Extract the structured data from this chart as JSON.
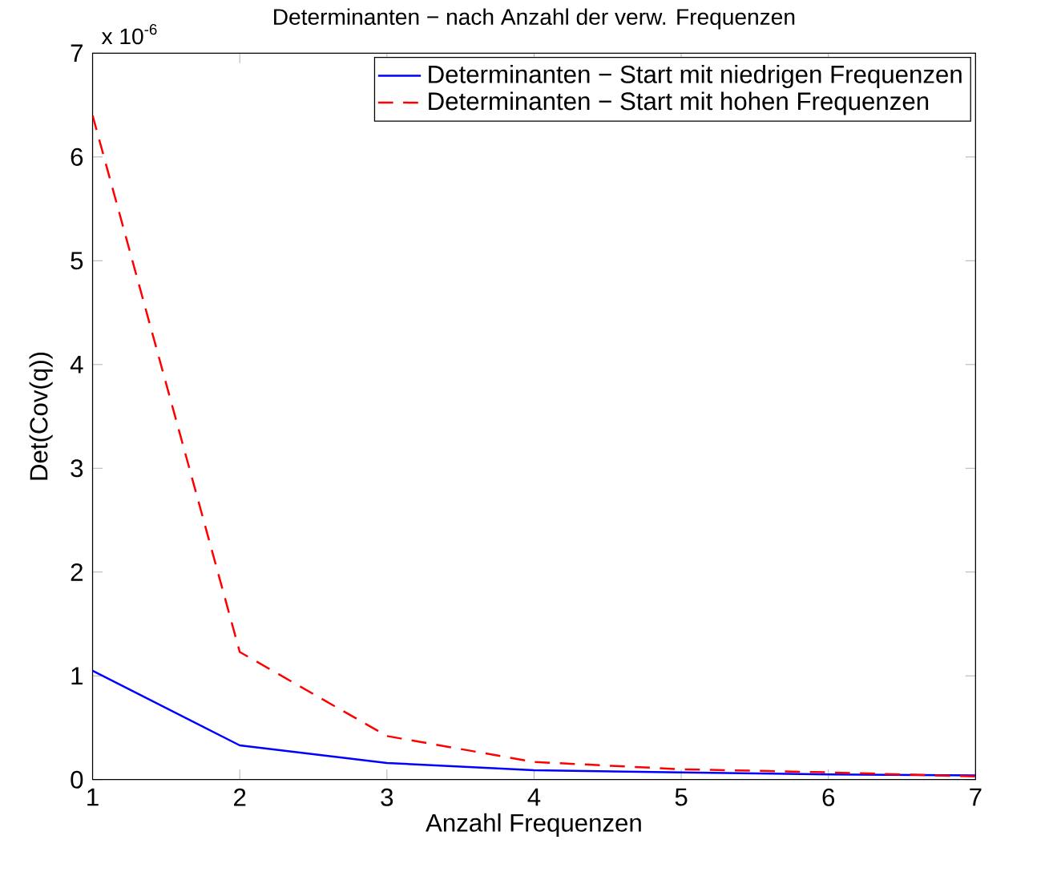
{
  "chart_data": {
    "type": "line",
    "title": "Determinanten − nach Anzahl der verw. Frequenzen",
    "xlabel": "Anzahl Frequenzen",
    "ylabel": "Det(Cov(q))",
    "annotations": [
      "x 10$^{-6}$"
    ],
    "x": [
      1,
      2,
      3,
      4,
      5,
      6,
      7
    ],
    "series": [
      {
        "name": "Determinanten − Start mit niedrigen Frequenzen",
        "color": "#0000ff",
        "line_style": "solid",
        "values": [
          1.05,
          0.33,
          0.16,
          0.09,
          0.07,
          0.05,
          0.04
        ]
      },
      {
        "name": "Determinanten − Start mit hohen Frequenzen",
        "color": "#ff0000",
        "line_style": "dashed",
        "values": [
          6.4,
          1.23,
          0.42,
          0.17,
          0.1,
          0.07,
          0.03
        ]
      }
    ],
    "xlim": [
      1,
      7
    ],
    "ylim": [
      0,
      7
    ],
    "xticks": [
      1,
      2,
      3,
      4,
      5,
      6,
      7
    ],
    "yticks": [
      0,
      1,
      2,
      3,
      4,
      5,
      6,
      7
    ],
    "legend": "top right",
    "grid": false
  }
}
